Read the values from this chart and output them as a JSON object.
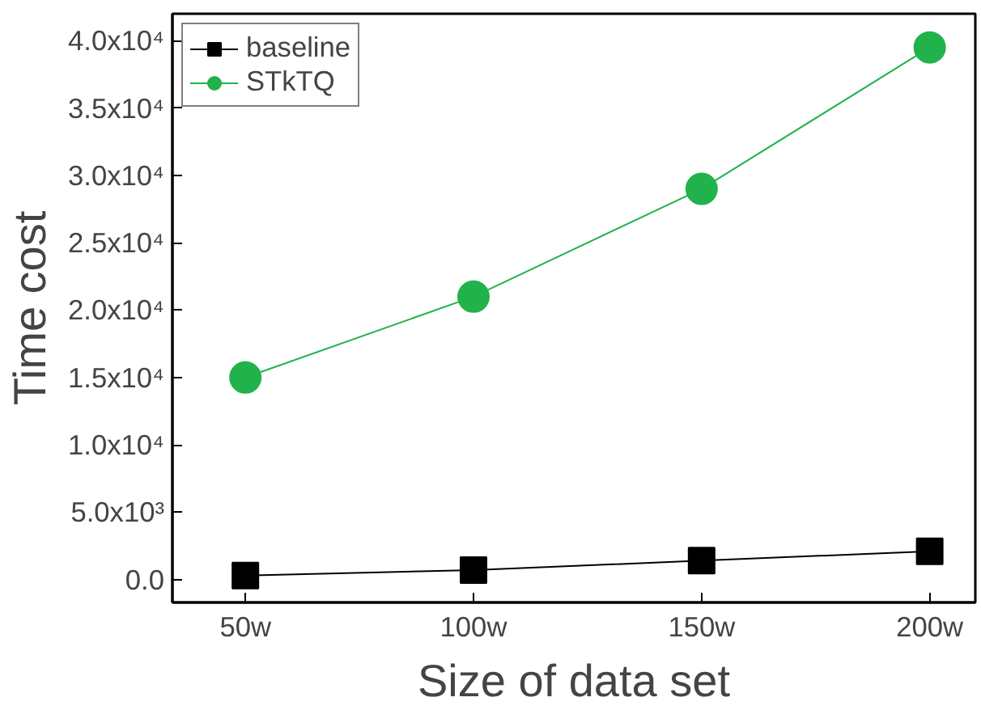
{
  "chart_data": {
    "type": "line",
    "xlabel": "Size of data set",
    "ylabel": "Time cost",
    "categories": [
      "50w",
      "100w",
      "150w",
      "200w"
    ],
    "series": [
      {
        "name": "baseline",
        "color": "#000000",
        "marker": "square",
        "values": [
          300,
          700,
          1400,
          2100
        ]
      },
      {
        "name": "STkTQ",
        "color": "#22b24c",
        "marker": "circle",
        "values": [
          15000,
          21000,
          29000,
          39500
        ]
      }
    ],
    "ylim": [
      -1700,
      42000
    ],
    "yticks": [
      {
        "value": 0,
        "label": "0.0"
      },
      {
        "value": 5000,
        "label": "5.0x10³"
      },
      {
        "value": 10000,
        "label": "1.0x10⁴"
      },
      {
        "value": 15000,
        "label": "1.5x10⁴"
      },
      {
        "value": 20000,
        "label": "2.0x10⁴"
      },
      {
        "value": 25000,
        "label": "2.5x10⁴"
      },
      {
        "value": 30000,
        "label": "3.0x10⁴"
      },
      {
        "value": 35000,
        "label": "3.5x10⁴"
      },
      {
        "value": 40000,
        "label": "4.0x10⁴"
      }
    ],
    "legend": "top left",
    "grid": false
  }
}
